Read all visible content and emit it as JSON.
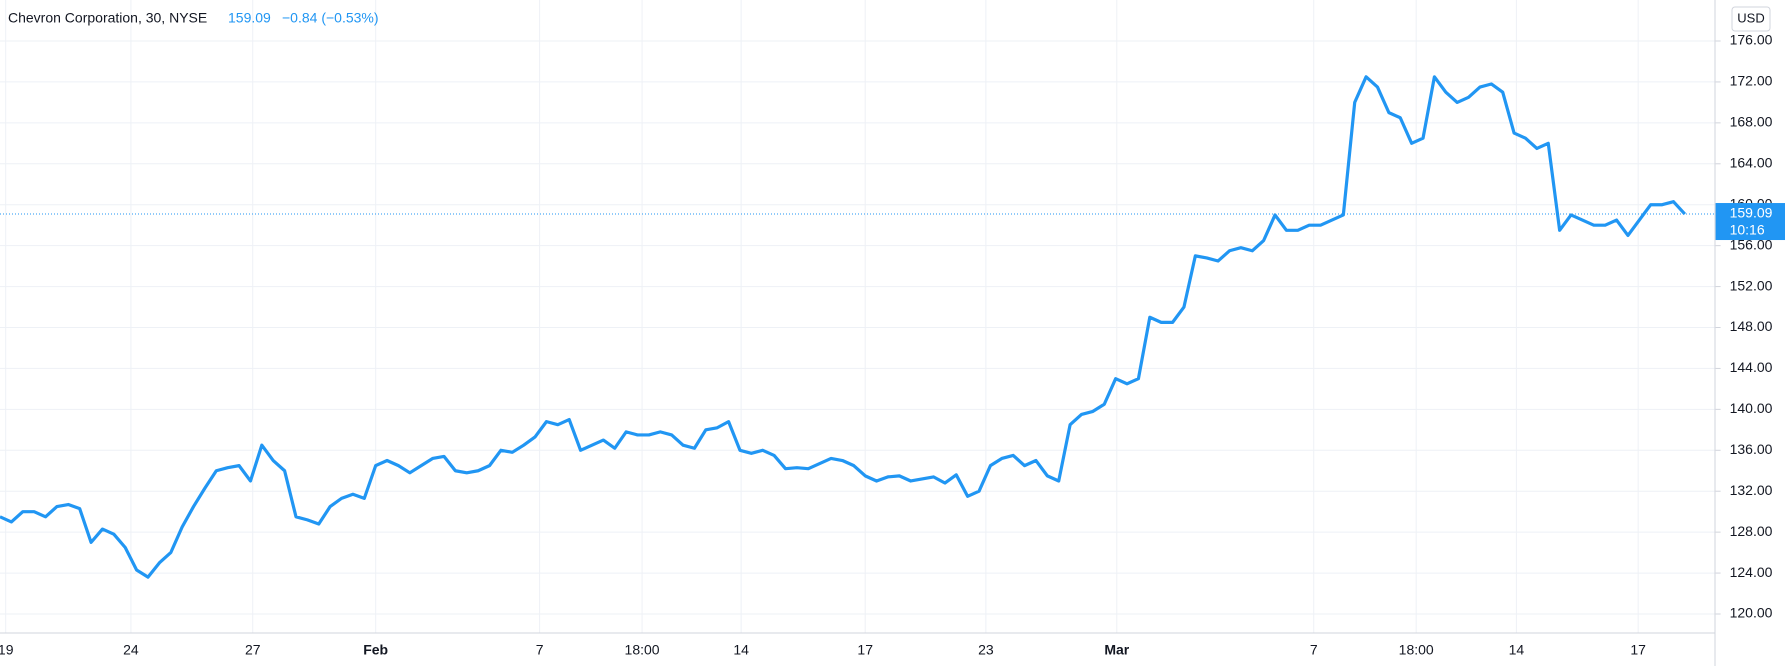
{
  "chart_data": {
    "type": "line",
    "symbol": "Chevron Corporation, 30, NYSE",
    "last_price": 159.09,
    "change": "−0.84 (−0.53%)",
    "countdown": "10:16",
    "currency": "USD",
    "color": "#2196f3",
    "grid": true,
    "series": [
      {
        "color": "#2196f3",
        "values": [
          129.5,
          129.0,
          130,
          130,
          129.5,
          130.5,
          130.7,
          130.3,
          127,
          128.3,
          127.8,
          126.5,
          124.3,
          123.6,
          125,
          126,
          128.5,
          130.5,
          132.3,
          134,
          134.3,
          134.5,
          133,
          136.5,
          135,
          134,
          129.5,
          129.2,
          128.8,
          130.5,
          131.3,
          131.7,
          131.3,
          134.5,
          135,
          134.5,
          133.8,
          134.5,
          135.2,
          135.4,
          134,
          133.8,
          134,
          134.5,
          136,
          135.8,
          136.5,
          137.3,
          138.8,
          138.5,
          139,
          136,
          136.5,
          137,
          136.2,
          137.8,
          137.5,
          137.5,
          137.8,
          137.5,
          136.5,
          136.2,
          138,
          138.2,
          138.8,
          136,
          135.7,
          136,
          135.5,
          134.2,
          134.3,
          134.2,
          134.7,
          135.2,
          135,
          134.5,
          133.5,
          133,
          133.4,
          133.5,
          133,
          133.2,
          133.4,
          132.8,
          133.6,
          131.5,
          132,
          134.5,
          135.2,
          135.5,
          134.5,
          135,
          133.5,
          133,
          138.5,
          139.5,
          139.8,
          140.5,
          143,
          142.5,
          143,
          149,
          148.5,
          148.5,
          150,
          155,
          154.8,
          154.5,
          155.5,
          155.8,
          155.5,
          156.5,
          159,
          157.5,
          157.5,
          158,
          158,
          158.5,
          159,
          170,
          172.5,
          171.5,
          169,
          168.5,
          166,
          166.5,
          172.5,
          171,
          170,
          170.5,
          171.5,
          171.8,
          171,
          167,
          166.5,
          165.5,
          166,
          157.5,
          159,
          158.5,
          158,
          158,
          158.5,
          157,
          158.5,
          160,
          160,
          160.3,
          159.09
        ]
      }
    ],
    "xlim": [
      0,
      150.7
    ],
    "xticks": [
      {
        "value": 0.5,
        "label": "19"
      },
      {
        "value": 11.5,
        "label": "24"
      },
      {
        "value": 22.2,
        "label": "27"
      },
      {
        "value": 33,
        "label": "Feb"
      },
      {
        "value": 47.4,
        "label": "7"
      },
      {
        "value": 56.4,
        "label": "18:00"
      },
      {
        "value": 65.1,
        "label": "14"
      },
      {
        "value": 76,
        "label": "17"
      },
      {
        "value": 86.6,
        "label": "23"
      },
      {
        "value": 98.1,
        "label": "Mar"
      },
      {
        "value": 115.4,
        "label": "7"
      },
      {
        "value": 124.4,
        "label": "18:00"
      },
      {
        "value": 133.2,
        "label": "14"
      },
      {
        "value": 143.9,
        "label": "17"
      }
    ],
    "ylim": [
      117.8,
      180.5
    ],
    "yticks": [
      {
        "value": 120,
        "label": "120.00"
      },
      {
        "value": 124,
        "label": "124.00"
      },
      {
        "value": 128,
        "label": "128.00"
      },
      {
        "value": 132,
        "label": "132.00"
      },
      {
        "value": 136,
        "label": "136.00"
      },
      {
        "value": 140,
        "label": "140.00"
      },
      {
        "value": 144,
        "label": "144.00"
      },
      {
        "value": 148,
        "label": "148.00"
      },
      {
        "value": 152,
        "label": "152.00"
      },
      {
        "value": 156,
        "label": "156.00"
      },
      {
        "value": 160,
        "label": "160.00"
      },
      {
        "value": 164,
        "label": "164.00"
      },
      {
        "value": 168,
        "label": "168.00"
      },
      {
        "value": 172,
        "label": "172.00"
      },
      {
        "value": 176,
        "label": "176.00"
      }
    ]
  }
}
